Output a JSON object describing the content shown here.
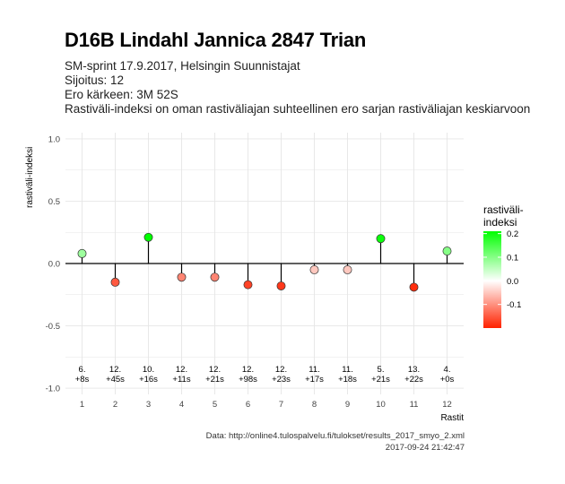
{
  "header": {
    "title": "D16B Lindahl Jannica 2847 Trian",
    "subtitle_lines": [
      "SM-sprint 17.9.2017, Helsingin Suunnistajat",
      "Sijoitus: 12",
      "Ero kärkeen: 3M 52S",
      "Rastiväli-indeksi on oman rastiväliajan suhteellinen ero sarjan rastiväliajan keskiarvoon"
    ]
  },
  "footer": {
    "source": "Data: http://online4.tulospalvelu.fi/tulokset/results_2017_smyo_2.xml",
    "timestamp": "2017-09-24 21:42:47"
  },
  "chart_data": {
    "type": "lollipop",
    "xlabel": "Rastit",
    "ylabel": "rastiväli-indeksi",
    "ylim": [
      -1.05,
      1.05
    ],
    "yticks": [
      -1.0,
      -0.5,
      0.0,
      0.5,
      1.0
    ],
    "ytick_labels": [
      "-1.0",
      "-0.5",
      "0.0",
      "0.5",
      "1.0"
    ],
    "x": [
      1,
      2,
      3,
      4,
      5,
      6,
      7,
      8,
      9,
      10,
      11,
      12
    ],
    "values": [
      0.08,
      -0.15,
      0.21,
      -0.11,
      -0.11,
      -0.17,
      -0.18,
      -0.05,
      -0.05,
      0.2,
      -0.19,
      0.1
    ],
    "rank_labels": [
      "6.",
      "12.",
      "10.",
      "12.",
      "12.",
      "12.",
      "12.",
      "11.",
      "11.",
      "5.",
      "13.",
      "4."
    ],
    "time_labels": [
      "+8s",
      "+45s",
      "+16s",
      "+11s",
      "+21s",
      "+98s",
      "+23s",
      "+17s",
      "+18s",
      "+21s",
      "+22s",
      "+0s"
    ],
    "legend": {
      "title_lines": [
        "rastiväli-",
        "indeksi"
      ],
      "ticks": [
        0.2,
        0.1,
        0.0,
        -0.1
      ],
      "tick_labels": [
        "0.2",
        "0.1",
        "0.0",
        "-0.1"
      ],
      "range": [
        -0.2,
        0.21
      ],
      "colors": {
        "high": "#00ff00",
        "mid": "#ffffff",
        "low": "#ff2200"
      }
    },
    "grid": true
  }
}
